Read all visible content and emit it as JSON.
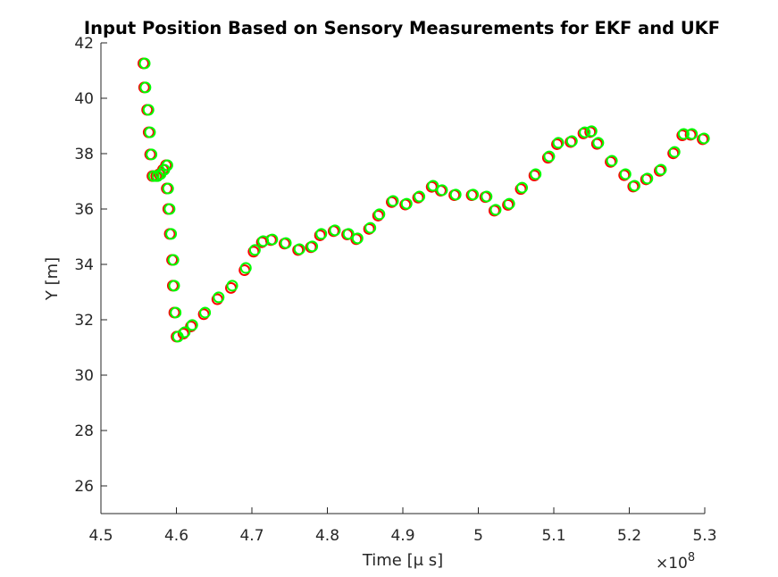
{
  "chart_data": {
    "type": "scatter",
    "title": "Input Position Based on Sensory Measurements for EKF and UKF",
    "x_label": "Time [μ s]",
    "y_label": "Y [m]",
    "x_multiplier": "×10",
    "x_exponent": "8",
    "xlim": [
      4.5,
      5.3
    ],
    "xticks": [
      4.5,
      4.6,
      4.7,
      4.8,
      4.9,
      5,
      5.1,
      5.2,
      5.3
    ],
    "ylim": [
      25,
      42
    ],
    "yticks": [
      26,
      28,
      30,
      32,
      34,
      36,
      38,
      40,
      42
    ],
    "x": [
      4.558,
      4.559,
      4.563,
      4.565,
      4.567,
      4.57,
      4.575,
      4.579,
      4.584,
      4.588,
      4.589,
      4.591,
      4.593,
      4.596,
      4.597,
      4.599,
      4.602,
      4.611,
      4.621,
      4.638,
      4.656,
      4.674,
      4.692,
      4.704,
      4.715,
      4.727,
      4.745,
      4.763,
      4.78,
      4.792,
      4.81,
      4.828,
      4.84,
      4.857,
      4.869,
      4.887,
      4.905,
      4.922,
      4.94,
      4.952,
      4.97,
      4.993,
      5.011,
      5.023,
      5.041,
      5.058,
      5.076,
      5.094,
      5.106,
      5.124,
      5.141,
      5.15,
      5.159,
      5.177,
      5.195,
      5.207,
      5.224,
      5.242,
      5.26,
      5.272,
      5.283,
      5.299
    ],
    "series": [
      {
        "color": "#ff0000",
        "values": [
          41.26,
          40.39,
          39.58,
          38.77,
          37.97,
          37.19,
          37.19,
          37.26,
          37.42,
          37.58,
          36.74,
          36.0,
          35.1,
          34.16,
          33.23,
          32.26,
          31.39,
          31.5,
          31.76,
          32.2,
          32.74,
          33.15,
          33.79,
          34.46,
          34.8,
          34.88,
          34.75,
          34.52,
          34.62,
          35.05,
          35.2,
          35.08,
          34.91,
          35.28,
          35.76,
          36.25,
          36.16,
          36.41,
          36.8,
          36.66,
          36.5,
          36.5,
          36.43,
          35.94,
          36.15,
          36.72,
          37.21,
          37.85,
          38.34,
          38.42,
          38.73,
          38.78,
          38.35,
          37.7,
          37.22,
          36.81,
          37.07,
          37.38,
          38.01,
          38.66,
          38.68,
          38.52
        ]
      },
      {
        "color": "#00ff00",
        "values": [
          41.26,
          40.39,
          39.58,
          38.77,
          37.97,
          37.19,
          37.19,
          37.26,
          37.42,
          37.58,
          36.74,
          36.0,
          35.1,
          34.16,
          33.23,
          32.26,
          31.39,
          31.55,
          31.81,
          32.26,
          32.81,
          33.23,
          33.87,
          34.52,
          34.84,
          34.9,
          34.77,
          34.55,
          34.65,
          35.1,
          35.23,
          35.1,
          34.94,
          35.32,
          35.81,
          36.29,
          36.19,
          36.45,
          36.84,
          36.68,
          36.52,
          36.52,
          36.45,
          35.97,
          36.19,
          36.77,
          37.26,
          37.9,
          38.39,
          38.45,
          38.77,
          38.81,
          38.39,
          37.74,
          37.26,
          36.84,
          37.1,
          37.42,
          38.06,
          38.71,
          38.71,
          38.55
        ]
      }
    ]
  }
}
